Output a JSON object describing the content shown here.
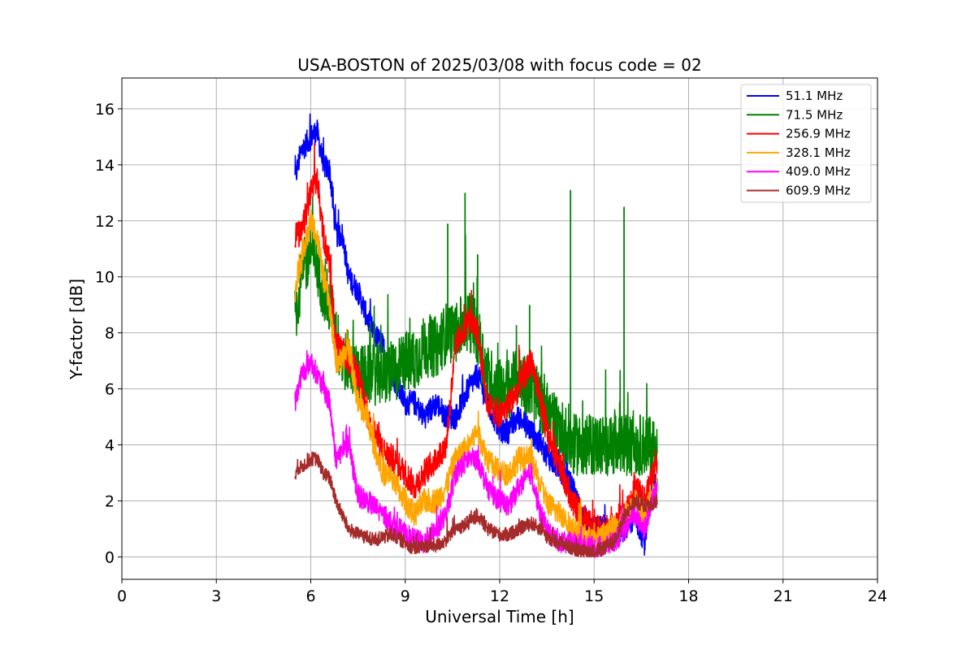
{
  "chart_data": {
    "type": "line",
    "title": "USA-BOSTON of 2025/03/08 with focus code = 02",
    "xlabel": "Universal Time [h]",
    "ylabel": "Y-factor [dB]",
    "xlim": [
      0,
      24
    ],
    "ylim": [
      -0.8,
      17.1
    ],
    "xticks": [
      0,
      3,
      6,
      9,
      12,
      15,
      18,
      21,
      24
    ],
    "yticks": [
      0,
      2,
      4,
      6,
      8,
      10,
      12,
      14,
      16
    ],
    "grid": true,
    "legend_position": "top-right",
    "series": [
      {
        "name": "  51.1 MHz",
        "color": "#0000ff",
        "noise": 0.45,
        "x": [
          5.5,
          5.7,
          6.0,
          6.2,
          6.4,
          6.6,
          6.8,
          7.0,
          7.2,
          7.5,
          7.8,
          8.0,
          8.3,
          8.6,
          9.0,
          9.3,
          9.6,
          10.0,
          10.3,
          10.6,
          11.0,
          11.3,
          11.6,
          12.0,
          12.3,
          12.6,
          13.0,
          13.3,
          13.6,
          14.0,
          14.3,
          14.6,
          15.0,
          15.3,
          15.6,
          16.0,
          16.3,
          16.6,
          17.0
        ],
        "y": [
          13.5,
          14.5,
          15.0,
          15.2,
          14.0,
          13.8,
          11.5,
          11.5,
          10.0,
          9.5,
          8.5,
          8.0,
          7.5,
          6.5,
          5.5,
          5.5,
          5.0,
          5.5,
          5.0,
          5.0,
          6.0,
          6.5,
          5.5,
          4.5,
          4.5,
          5.0,
          4.5,
          4.0,
          3.5,
          3.0,
          2.5,
          1.5,
          1.0,
          1.0,
          0.8,
          1.0,
          1.5,
          0.5,
          3.0
        ]
      },
      {
        "name": "  71.5 MHz",
        "color": "#008000",
        "noise": 1.1,
        "x": [
          5.5,
          5.7,
          6.0,
          6.2,
          6.4,
          6.6,
          6.8,
          7.0,
          7.2,
          7.5,
          7.8,
          8.0,
          8.3,
          8.6,
          9.0,
          9.3,
          9.6,
          10.0,
          10.3,
          10.6,
          11.0,
          11.3,
          11.6,
          12.0,
          12.3,
          12.6,
          13.0,
          13.3,
          13.6,
          14.0,
          14.3,
          14.6,
          15.0,
          15.3,
          15.6,
          16.0,
          16.3,
          16.6,
          17.0
        ],
        "y": [
          8.5,
          10.0,
          11.0,
          10.5,
          9.5,
          9.0,
          8.0,
          7.0,
          7.0,
          6.5,
          6.5,
          6.5,
          6.5,
          6.5,
          7.0,
          7.0,
          7.5,
          7.5,
          8.0,
          8.0,
          8.5,
          8.0,
          6.5,
          6.0,
          6.0,
          6.5,
          6.0,
          5.5,
          5.0,
          4.5,
          4.0,
          4.0,
          4.0,
          4.0,
          4.0,
          4.0,
          4.0,
          4.0,
          4.0
        ],
        "spikes": [
          [
            10.9,
            13.0
          ],
          [
            14.25,
            13.1
          ],
          [
            15.95,
            12.5
          ],
          [
            10.35,
            11.9
          ],
          [
            11.3,
            10.8
          ],
          [
            12.95,
            9.0
          ]
        ]
      },
      {
        "name": "  256.9 MHz",
        "color": "#ff0000",
        "noise": 0.5,
        "x": [
          5.5,
          5.7,
          6.0,
          6.2,
          6.4,
          6.6,
          6.8,
          7.0,
          7.2,
          7.5,
          7.8,
          8.0,
          8.3,
          8.6,
          9.0,
          9.3,
          9.6,
          10.0,
          10.3,
          10.6,
          11.0,
          11.3,
          11.6,
          12.0,
          12.3,
          12.6,
          13.0,
          13.3,
          13.6,
          14.0,
          14.3,
          14.6,
          15.0,
          15.3,
          15.6,
          16.0,
          16.3,
          16.6,
          17.0
        ],
        "y": [
          11.5,
          11.5,
          13.0,
          13.5,
          11.5,
          10.5,
          7.5,
          7.5,
          7.0,
          6.5,
          5.0,
          4.5,
          3.8,
          3.5,
          3.0,
          2.5,
          3.0,
          3.5,
          4.0,
          7.5,
          8.5,
          8.0,
          5.5,
          5.0,
          5.5,
          6.0,
          7.0,
          5.5,
          4.0,
          3.0,
          2.0,
          1.5,
          1.0,
          1.0,
          1.0,
          1.5,
          2.5,
          2.0,
          3.5
        ]
      },
      {
        "name": "  328.1 MHz",
        "color": "#ffa500",
        "noise": 0.45,
        "x": [
          5.5,
          5.7,
          6.0,
          6.2,
          6.4,
          6.6,
          6.8,
          7.0,
          7.2,
          7.5,
          7.8,
          8.0,
          8.3,
          8.6,
          9.0,
          9.3,
          9.6,
          10.0,
          10.3,
          10.6,
          11.0,
          11.3,
          11.6,
          12.0,
          12.3,
          12.6,
          13.0,
          13.3,
          13.6,
          14.0,
          14.3,
          14.6,
          15.0,
          15.3,
          15.6,
          16.0,
          16.3,
          16.6,
          17.0
        ],
        "y": [
          9.5,
          10.5,
          12.0,
          11.5,
          10.0,
          9.0,
          7.0,
          7.0,
          7.5,
          5.5,
          5.0,
          4.0,
          3.0,
          2.8,
          2.0,
          1.5,
          2.0,
          2.0,
          2.5,
          3.5,
          4.0,
          4.5,
          3.5,
          3.0,
          3.0,
          3.5,
          3.5,
          2.5,
          1.8,
          1.5,
          1.0,
          0.8,
          0.5,
          0.8,
          1.0,
          1.5,
          2.0,
          1.5,
          2.5
        ]
      },
      {
        "name": "  409.0 MHz",
        "color": "#ff00ff",
        "noise": 0.4,
        "x": [
          5.5,
          5.7,
          6.0,
          6.2,
          6.4,
          6.6,
          6.8,
          7.0,
          7.2,
          7.5,
          7.8,
          8.0,
          8.3,
          8.6,
          9.0,
          9.3,
          9.6,
          10.0,
          10.3,
          10.6,
          11.0,
          11.3,
          11.6,
          12.0,
          12.3,
          12.6,
          13.0,
          13.3,
          13.6,
          14.0,
          14.3,
          14.6,
          15.0,
          15.3,
          15.6,
          16.0,
          16.3,
          16.6,
          17.0
        ],
        "y": [
          5.5,
          6.5,
          7.0,
          6.5,
          6.0,
          5.5,
          3.5,
          3.8,
          4.0,
          2.2,
          2.0,
          1.8,
          1.5,
          1.2,
          0.8,
          0.6,
          0.5,
          1.0,
          1.5,
          3.0,
          3.5,
          3.5,
          2.5,
          2.0,
          1.8,
          2.5,
          3.0,
          1.5,
          0.8,
          0.5,
          0.5,
          0.4,
          0.3,
          0.4,
          0.5,
          1.0,
          1.5,
          1.0,
          2.5
        ]
      },
      {
        "name": "  609.9 MHz",
        "color": "#a52a2a",
        "noise": 0.25,
        "x": [
          5.5,
          5.7,
          6.0,
          6.2,
          6.4,
          6.6,
          6.8,
          7.0,
          7.2,
          7.5,
          7.8,
          8.0,
          8.3,
          8.6,
          9.0,
          9.3,
          9.6,
          10.0,
          10.3,
          10.6,
          11.0,
          11.3,
          11.6,
          12.0,
          12.3,
          12.6,
          13.0,
          13.3,
          13.6,
          14.0,
          14.3,
          14.6,
          15.0,
          15.3,
          15.6,
          16.0,
          16.3,
          16.6,
          17.0
        ],
        "y": [
          3.0,
          3.2,
          3.5,
          3.5,
          3.0,
          2.8,
          2.0,
          1.5,
          1.0,
          0.8,
          0.7,
          0.6,
          0.7,
          0.8,
          0.5,
          0.3,
          0.4,
          0.4,
          0.6,
          1.0,
          1.2,
          1.5,
          1.0,
          0.8,
          0.8,
          1.0,
          1.2,
          1.0,
          0.6,
          0.5,
          0.3,
          0.2,
          0.2,
          0.3,
          0.5,
          1.5,
          2.0,
          1.8,
          2.0
        ]
      }
    ]
  }
}
